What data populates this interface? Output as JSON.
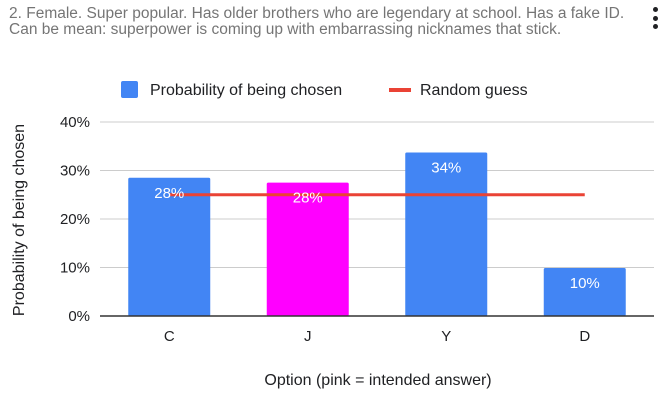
{
  "chart_title": "2. Female. Super popular. Has older brothers who are legendary at school. Has a fake ID. Can be mean: superpower is coming up with embarrassing nicknames that stick.",
  "menu_icon": "more-vert-icon",
  "chart_data": {
    "type": "bar",
    "categories": [
      "C",
      "J",
      "Y",
      "D"
    ],
    "series": [
      {
        "name": "Probability of being chosen",
        "values": [
          28.5,
          27.5,
          33.7,
          9.9
        ],
        "labels": [
          "28%",
          "28%",
          "34%",
          "10%"
        ],
        "color": "#4285f4",
        "highlight_color": "#ff00ff",
        "highlight_category": "J"
      },
      {
        "name": "Random guess",
        "type": "line",
        "value": 25,
        "color": "#ea4335"
      }
    ],
    "xlabel": "Option (pink = intended answer)",
    "ylabel": "Probability of being chosen",
    "ylim": [
      0,
      40
    ],
    "yticks": [
      "0%",
      "10%",
      "20%",
      "30%",
      "40%"
    ],
    "grid": true,
    "legend_position": "top"
  }
}
